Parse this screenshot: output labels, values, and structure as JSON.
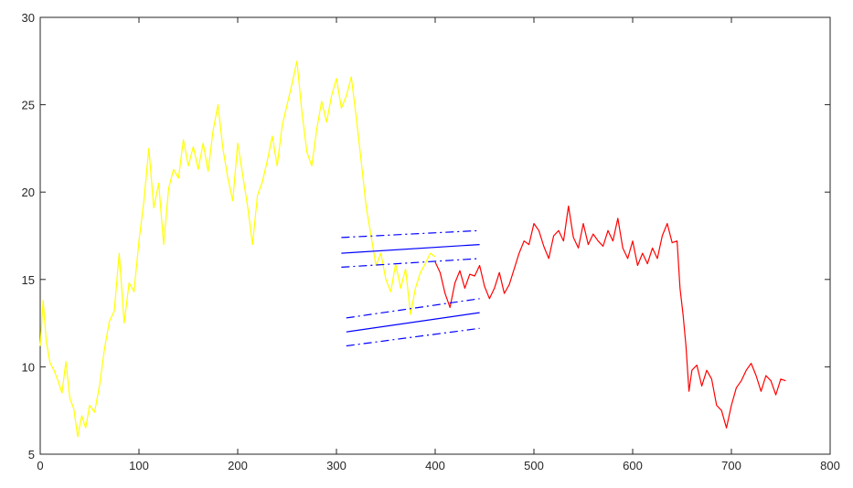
{
  "chart_data": {
    "type": "line",
    "title": "",
    "xlabel": "",
    "ylabel": "",
    "xlim": [
      0,
      800
    ],
    "ylim": [
      5,
      30
    ],
    "grid": false,
    "legend": "none",
    "xticks": [
      0,
      100,
      200,
      300,
      400,
      500,
      600,
      700,
      800
    ],
    "yticks": [
      5,
      10,
      15,
      20,
      25,
      30
    ],
    "colors": {
      "history": "#ffff00",
      "actual": "#ff0000",
      "forecast": "#0000ff",
      "axes": "#262626",
      "background": "#ffffff"
    },
    "series": [
      {
        "color": "#ffff00",
        "style": "solid",
        "x": [
          0,
          3,
          6,
          10,
          14,
          18,
          22,
          26,
          30,
          34,
          38,
          42,
          46,
          50,
          55,
          60,
          65,
          70,
          75,
          80,
          85,
          90,
          95,
          100,
          105,
          110,
          115,
          120,
          125,
          130,
          135,
          140,
          145,
          150,
          155,
          160,
          165,
          170,
          175,
          180,
          185,
          190,
          195,
          200,
          205,
          210,
          215,
          220,
          225,
          230,
          235,
          240,
          245,
          250,
          255,
          260,
          265,
          270,
          275,
          280,
          285,
          290,
          295,
          300,
          305,
          310,
          315,
          320,
          325,
          330,
          335,
          340,
          345,
          350,
          355,
          360,
          365,
          370,
          375,
          380,
          385,
          390,
          395,
          400
        ],
        "y": [
          11.2,
          13.8,
          11.5,
          10.2,
          9.8,
          9.2,
          8.5,
          10.3,
          8.2,
          7.6,
          6.0,
          7.2,
          6.5,
          7.8,
          7.4,
          8.9,
          11.0,
          12.6,
          13.2,
          16.5,
          12.5,
          14.8,
          14.3,
          17.2,
          19.5,
          22.5,
          19.1,
          20.5,
          17.0,
          20.2,
          21.3,
          20.8,
          23.0,
          21.5,
          22.6,
          21.3,
          22.8,
          21.2,
          23.5,
          25.0,
          22.5,
          20.8,
          19.5,
          22.8,
          21.0,
          19.2,
          17.0,
          19.8,
          20.6,
          21.8,
          23.2,
          21.5,
          23.8,
          25.0,
          26.2,
          27.5,
          24.6,
          22.3,
          21.5,
          23.6,
          25.2,
          24.0,
          25.5,
          26.5,
          24.8,
          25.5,
          26.6,
          24.3,
          21.8,
          19.2,
          17.5,
          15.8,
          16.5,
          15.0,
          14.3,
          15.9,
          14.5,
          15.6,
          13.0,
          14.5,
          15.4,
          15.9,
          16.5,
          16.3
        ]
      },
      {
        "color": "#ff0000",
        "style": "solid",
        "x": [
          400,
          405,
          410,
          415,
          420,
          425,
          430,
          435,
          440,
          445,
          450,
          455,
          460,
          465,
          470,
          475,
          480,
          485,
          490,
          495,
          500,
          505,
          510,
          515,
          520,
          525,
          530,
          535,
          540,
          545,
          550,
          555,
          560,
          565,
          570,
          575,
          580,
          585,
          590,
          595,
          600,
          605,
          610,
          615,
          620,
          625,
          630,
          635,
          640,
          645,
          648,
          651,
          654,
          657,
          660,
          665,
          670,
          675,
          680,
          685,
          690,
          695,
          700,
          705,
          710,
          715,
          720,
          725,
          730,
          735,
          740,
          745,
          750,
          755
        ],
        "y": [
          16.0,
          15.4,
          14.2,
          13.4,
          14.8,
          15.5,
          14.5,
          15.3,
          15.2,
          15.8,
          14.6,
          13.9,
          14.5,
          15.4,
          14.2,
          14.7,
          15.6,
          16.5,
          17.2,
          17.0,
          18.2,
          17.8,
          16.9,
          16.2,
          17.5,
          17.8,
          17.2,
          19.2,
          17.4,
          16.8,
          18.2,
          17.0,
          17.6,
          17.2,
          16.9,
          17.8,
          17.2,
          18.5,
          16.8,
          16.2,
          17.2,
          15.8,
          16.5,
          15.9,
          16.8,
          16.2,
          17.5,
          18.2,
          17.1,
          17.2,
          14.5,
          13.0,
          11.2,
          8.6,
          9.8,
          10.1,
          8.9,
          9.8,
          9.3,
          7.8,
          7.5,
          6.5,
          7.8,
          8.8,
          9.2,
          9.8,
          10.2,
          9.5,
          8.6,
          9.5,
          9.2,
          8.4,
          9.3,
          9.2
        ]
      },
      {
        "color": "#0000ff",
        "style": "solid",
        "x": [
          305,
          445
        ],
        "y": [
          16.5,
          17.0
        ]
      },
      {
        "color": "#0000ff",
        "style": "dashdot",
        "x": [
          305,
          445
        ],
        "y": [
          17.4,
          17.8
        ]
      },
      {
        "color": "#0000ff",
        "style": "dashdot",
        "x": [
          305,
          445
        ],
        "y": [
          15.7,
          16.2
        ]
      },
      {
        "color": "#0000ff",
        "style": "solid",
        "x": [
          310,
          445
        ],
        "y": [
          12.0,
          13.1
        ]
      },
      {
        "color": "#0000ff",
        "style": "dashdot",
        "x": [
          310,
          445
        ],
        "y": [
          12.8,
          13.9
        ]
      },
      {
        "color": "#0000ff",
        "style": "dashdot",
        "x": [
          310,
          445
        ],
        "y": [
          11.2,
          12.2
        ]
      }
    ]
  }
}
